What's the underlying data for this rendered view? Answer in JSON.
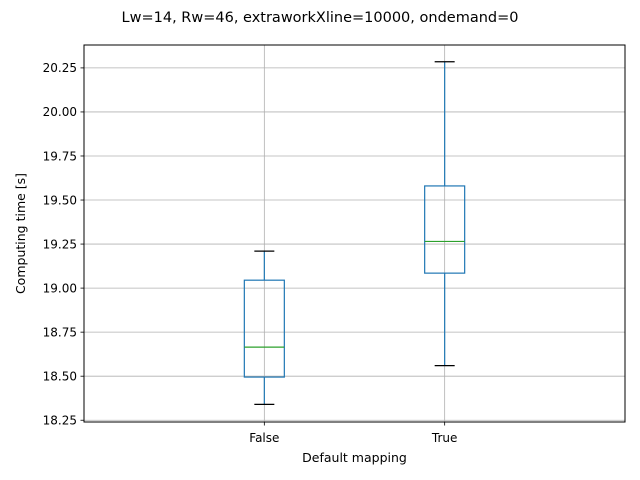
{
  "chart_data": {
    "type": "box",
    "title": "Lw=14, Rw=46, extraworkXline=10000, ondemand=0",
    "xlabel": "Default mapping",
    "ylabel": "Computing time [s]",
    "categories": [
      "False",
      "True"
    ],
    "ylim": [
      18.24,
      20.38
    ],
    "yticks": [
      "18.25",
      "18.50",
      "18.75",
      "19.00",
      "19.25",
      "19.50",
      "19.75",
      "20.00",
      "20.25"
    ],
    "grid": true,
    "boxes": [
      {
        "category": "False",
        "whisker_low": 18.34,
        "q1": 18.495,
        "median": 18.665,
        "q3": 19.045,
        "whisker_high": 19.21
      },
      {
        "category": "True",
        "whisker_low": 18.56,
        "q1": 19.085,
        "median": 19.265,
        "q3": 19.58,
        "whisker_high": 20.285
      }
    ],
    "colors": {
      "box": "#1f77b4",
      "median": "#2ca02c",
      "cap": "#000000",
      "grid": "#b0b0b0"
    }
  }
}
